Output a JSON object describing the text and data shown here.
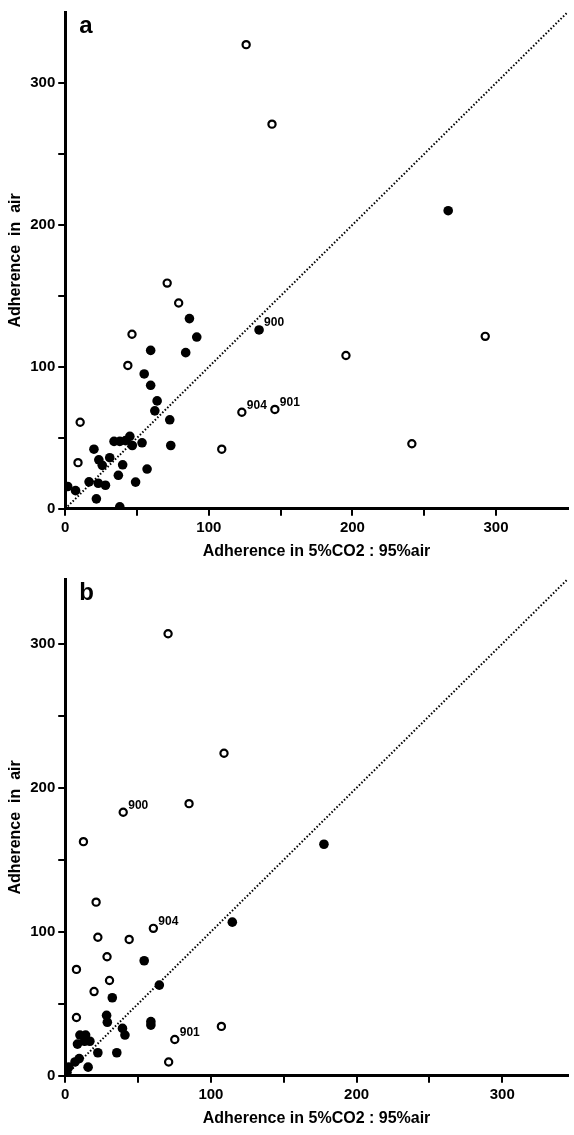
{
  "chart_data": [
    {
      "type": "scatter",
      "title": "a",
      "xlabel": "Adherence in 5%CO2 : 95%air",
      "ylabel": "Adherence  in  air",
      "xlim": [
        0,
        350
      ],
      "ylim": [
        0,
        350
      ],
      "xticks": [
        0,
        {
          "value": 50,
          "label": null
        },
        100,
        {
          "value": 150,
          "label": null
        },
        200,
        {
          "value": 250,
          "label": null
        },
        300
      ],
      "yticks": [
        0,
        {
          "value": 50,
          "label": null
        },
        100,
        {
          "value": 150,
          "label": null
        },
        200,
        {
          "value": 250,
          "label": null
        },
        300
      ],
      "grid": false,
      "legend": false,
      "series": [
        {
          "type": "line",
          "color": "#000000",
          "line_style": "dotted",
          "marker": "none",
          "x": [
            0,
            350
          ],
          "values": [
            0,
            350
          ]
        },
        {
          "color": "#000000",
          "marker": "circle-open",
          "x": [
            71,
            79,
            46.5,
            43.6,
            10.4,
            8.9,
            123,
            146,
            109,
            126,
            144,
            195.5,
            292.5,
            241.4
          ],
          "values": [
            159,
            145,
            123,
            101,
            61,
            32.5,
            68,
            70,
            42,
            327,
            271,
            108,
            121.5,
            45.8
          ]
        },
        {
          "color": "#000000",
          "marker": "circle",
          "x": [
            86.5,
            91.6,
            59.5,
            83.9,
            55,
            59.5,
            64,
            62.4,
            72.8,
            73.5,
            45,
            46.7,
            53.5,
            34,
            38,
            42,
            20,
            23.4,
            25.8,
            31,
            40,
            57,
            37,
            28,
            23,
            16.6,
            49,
            21.7,
            38,
            1.7,
            7.2,
            135,
            266.7
          ],
          "values": [
            134,
            121,
            111.6,
            110,
            95,
            87,
            76,
            69,
            62.7,
            44.6,
            51,
            44.6,
            46.5,
            47.5,
            47.5,
            48,
            42,
            34.5,
            30.6,
            36,
            31,
            28,
            23.6,
            16.6,
            18,
            19,
            18.8,
            7,
            1.4,
            15.7,
            12.8,
            126,
            210
          ]
        }
      ],
      "annotations": [
        {
          "text": "900",
          "x": 135,
          "y": 126
        },
        {
          "text": "904",
          "x": 123,
          "y": 68
        },
        {
          "text": "901",
          "x": 146,
          "y": 70
        }
      ]
    },
    {
      "type": "scatter",
      "title": "b",
      "xlabel": "Adherence in 5%CO2 : 95%air",
      "ylabel": "Adherence  in  air",
      "xlim": [
        0,
        345
      ],
      "ylim": [
        0,
        345
      ],
      "xticks": [
        0,
        {
          "value": 50,
          "label": null
        },
        100,
        {
          "value": 150,
          "label": null
        },
        200,
        {
          "value": 250,
          "label": null
        },
        300
      ],
      "yticks": [
        0,
        {
          "value": 50,
          "label": null
        },
        100,
        {
          "value": 150,
          "label": null
        },
        200,
        {
          "value": 250,
          "label": null
        },
        300
      ],
      "grid": false,
      "legend": false,
      "series": [
        {
          "type": "line",
          "color": "#000000",
          "line_style": "dotted",
          "marker": "none",
          "x": [
            0,
            345
          ],
          "values": [
            0,
            345
          ]
        },
        {
          "color": "#000000",
          "marker": "circle-open",
          "x": [
            12.5,
            21.2,
            60.5,
            22.4,
            43.9,
            28.7,
            7.7,
            30.4,
            19.8,
            7.7,
            75.2,
            107.2,
            71,
            70.6,
            109,
            39.8,
            85
          ],
          "values": [
            162.6,
            120.6,
            102.4,
            96.2,
            94.7,
            82.7,
            73.9,
            66.2,
            58.5,
            40.5,
            25.2,
            34.3,
            9.6,
            307,
            224,
            183,
            189
          ]
        },
        {
          "color": "#000000",
          "marker": "circle",
          "x": [
            114.7,
            54.2,
            64.6,
            32.3,
            28.4,
            28.9,
            58.8,
            58.8,
            39.3,
            41,
            35.4,
            22.4,
            10.1,
            14,
            8.4,
            13.3,
            16.9,
            9.6,
            6.7,
            15.7,
            2.4,
            1.2,
            177.6
          ],
          "values": [
            106.7,
            79.9,
            63,
            54.2,
            42,
            37.2,
            37.6,
            35.2,
            32.9,
            28.3,
            16,
            16,
            28.3,
            28.3,
            22,
            24,
            24,
            12,
            9.6,
            6,
            6,
            2.4,
            160.8
          ]
        }
      ],
      "annotations": [
        {
          "text": "900",
          "x": 39.8,
          "y": 183
        },
        {
          "text": "904",
          "x": 60.5,
          "y": 102.4
        },
        {
          "text": "901",
          "x": 75.2,
          "y": 25.2
        }
      ]
    }
  ]
}
